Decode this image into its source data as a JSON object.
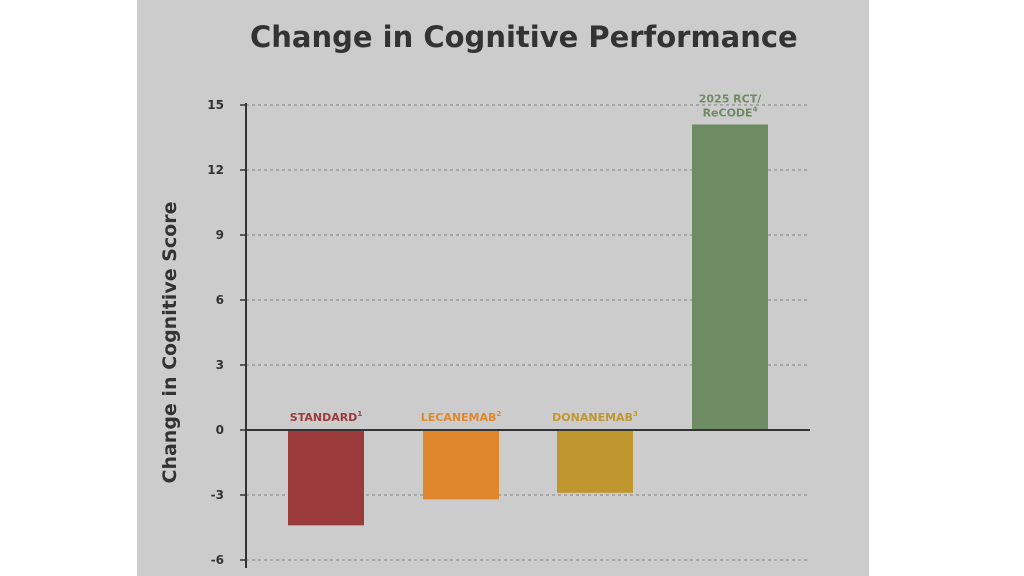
{
  "chart_data": {
    "type": "bar",
    "title": "Change in Cognitive Performance",
    "xlabel": "",
    "ylabel": "Change in Cognitive Score",
    "ylim": [
      -6,
      15
    ],
    "yticks": [
      15,
      12,
      9,
      6,
      3,
      0,
      -3,
      -6
    ],
    "grid": true,
    "categories": [
      {
        "lines": [
          "STANDARD"
        ],
        "sup": "1",
        "color": "#9b3a3a"
      },
      {
        "lines": [
          "LECANEMAB"
        ],
        "sup": "2",
        "color": "#e0862c"
      },
      {
        "lines": [
          "DONANEMAB"
        ],
        "sup": "3",
        "color": "#c0962e"
      },
      {
        "lines": [
          "2025 RCT/",
          "ReCODE"
        ],
        "sup": "4",
        "color": "#6e8c64"
      }
    ],
    "values": [
      -4.4,
      -3.2,
      -2.9,
      14.1
    ]
  }
}
